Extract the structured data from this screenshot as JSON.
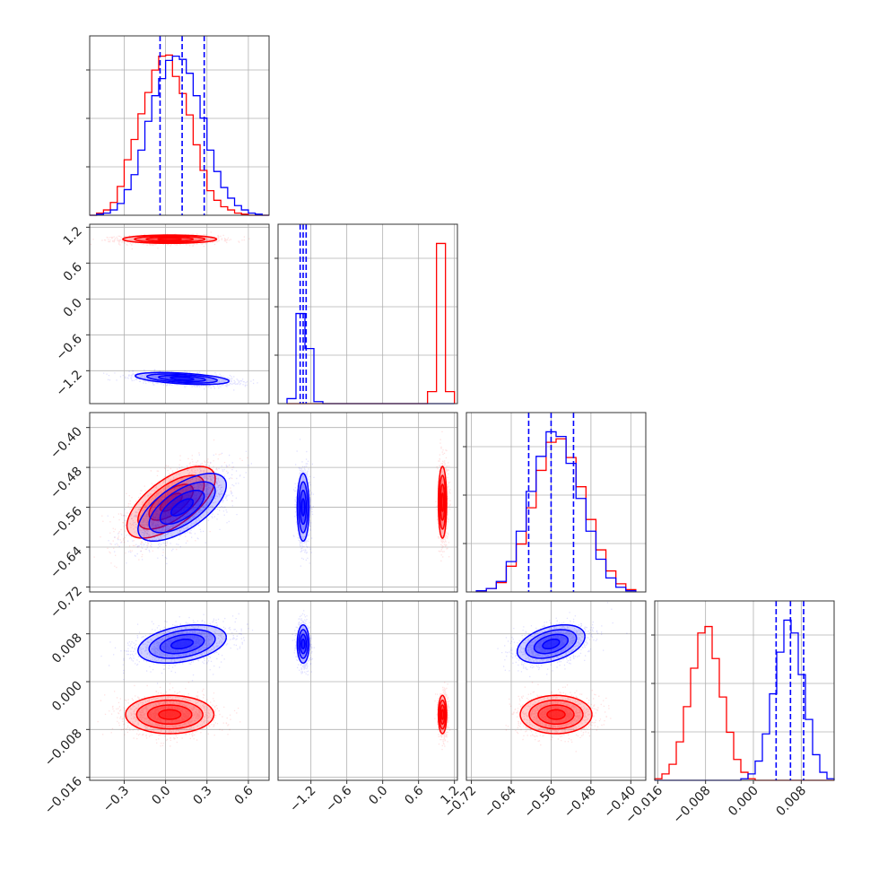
{
  "chart_data": {
    "type": "corner",
    "title": "",
    "grid": true,
    "legend": "none",
    "colors": {
      "series_a": "#ff0000",
      "series_b": "#0000ff",
      "quantile_lines": "#0000ff"
    },
    "series": [
      {
        "color": "#ff0000"
      },
      {
        "color": "#0000ff"
      }
    ],
    "parameters": [
      {
        "range": [
          -0.55,
          0.75
        ],
        "ticks": [
          -0.3,
          0.0,
          0.3,
          0.6
        ],
        "tick_labels": [
          "−0.3",
          "0.0",
          "0.3",
          "0.6"
        ],
        "quantiles": [
          -0.04,
          0.12,
          0.28
        ],
        "hist_bins": [
          -0.55,
          -0.5,
          -0.45,
          -0.4,
          -0.35,
          -0.3,
          -0.25,
          -0.2,
          -0.15,
          -0.1,
          -0.05,
          0.0,
          0.05,
          0.1,
          0.15,
          0.2,
          0.25,
          0.3,
          0.35,
          0.4,
          0.45,
          0.5,
          0.55,
          0.6,
          0.65,
          0.7,
          0.75
        ],
        "hist_red": [
          0,
          2,
          5,
          12,
          27,
          52,
          71,
          95,
          115,
          136,
          149,
          150,
          130,
          114,
          94,
          66,
          42,
          23,
          14,
          8,
          5,
          2,
          1,
          0,
          0,
          0
        ],
        "hist_blue": [
          0,
          1,
          2,
          5,
          11,
          24,
          38,
          61,
          88,
          112,
          128,
          145,
          149,
          146,
          133,
          112,
          91,
          61,
          41,
          26,
          16,
          9,
          5,
          2,
          1,
          0
        ]
      },
      {
        "range": [
          -1.75,
          1.25
        ],
        "ticks": [
          -1.2,
          -0.6,
          0.0,
          0.6,
          1.2
        ],
        "tick_labels": [
          "−1.2",
          "−0.6",
          "0.0",
          "0.6",
          "1.2"
        ],
        "quantiles": [
          -1.38,
          -1.33,
          -1.28
        ],
        "hist_bins": [
          -1.6,
          -1.45,
          -1.3,
          -1.15,
          -1.0,
          0.75,
          0.9,
          1.05,
          1.2
        ],
        "hist_red": [
          0,
          0,
          0,
          0,
          0,
          12,
          160,
          12
        ],
        "hist_blue": [
          5,
          90,
          55,
          2,
          0,
          0,
          0,
          0
        ]
      },
      {
        "range": [
          -0.73,
          -0.37
        ],
        "ticks": [
          -0.72,
          -0.64,
          -0.56,
          -0.48,
          -0.4
        ],
        "tick_labels": [
          "−0.72",
          "−0.64",
          "−0.56",
          "−0.48",
          "−0.40"
        ],
        "quantiles": [
          -0.605,
          -0.56,
          -0.515
        ],
        "hist_bins": [
          -0.71,
          -0.69,
          -0.67,
          -0.65,
          -0.63,
          -0.61,
          -0.59,
          -0.57,
          -0.55,
          -0.53,
          -0.51,
          -0.49,
          -0.47,
          -0.45,
          -0.43,
          -0.41,
          -0.39
        ],
        "hist_red": [
          1,
          3,
          8,
          22,
          41,
          72,
          104,
          128,
          131,
          115,
          90,
          62,
          36,
          18,
          7,
          2
        ],
        "hist_blue": [
          1,
          3,
          9,
          26,
          52,
          86,
          116,
          137,
          133,
          110,
          80,
          52,
          28,
          12,
          4,
          1
        ]
      },
      {
        "range": [
          -0.0165,
          0.0135
        ],
        "ticks": [
          -0.016,
          -0.008,
          0.0,
          0.008
        ],
        "tick_labels": [
          "−0.016",
          "−0.008",
          "0.000",
          "0.008"
        ],
        "quantiles": [
          0.0038,
          0.0062,
          0.0084
        ],
        "hist_bins": [
          -0.0165,
          -0.0153,
          -0.0141,
          -0.0129,
          -0.0117,
          -0.0105,
          -0.0093,
          -0.0081,
          -0.0069,
          -0.0057,
          -0.0045,
          -0.0033,
          -0.0021,
          -0.0009,
          0.0003,
          0.0015,
          0.0027,
          0.0039,
          0.0051,
          0.0063,
          0.0075,
          0.0087,
          0.0099,
          0.0111,
          0.0123,
          0.0135
        ],
        "hist_red": [
          1,
          4,
          10,
          24,
          46,
          70,
          92,
          96,
          76,
          52,
          30,
          13,
          5,
          1,
          0,
          0,
          0,
          0,
          0,
          0,
          0,
          0,
          0,
          0,
          0
        ],
        "hist_blue": [
          0,
          0,
          0,
          0,
          0,
          0,
          0,
          0,
          0,
          0,
          0,
          0,
          1,
          4,
          12,
          29,
          54,
          80,
          100,
          92,
          66,
          38,
          16,
          5,
          1
        ]
      }
    ],
    "panels_2d": [
      {
        "x": 0,
        "y": 1,
        "red": {
          "mean": [
            0.03,
            1.0
          ],
          "sd": [
            0.17,
            0.035
          ],
          "corr": 0.0
        },
        "blue": {
          "mean": [
            0.12,
            -1.33
          ],
          "sd": [
            0.17,
            0.05
          ],
          "corr": -0.45
        }
      },
      {
        "x": 0,
        "y": 2,
        "red": {
          "mean": [
            0.04,
            -0.55
          ],
          "sd": [
            0.16,
            0.036
          ],
          "corr": 0.65
        },
        "blue": {
          "mean": [
            0.12,
            -0.56
          ],
          "sd": [
            0.16,
            0.034
          ],
          "corr": 0.65
        }
      },
      {
        "x": 1,
        "y": 2,
        "red": {
          "mean": [
            1.0,
            -0.55
          ],
          "sd": [
            0.035,
            0.036
          ],
          "corr": 0.0
        },
        "blue": {
          "mean": [
            -1.33,
            -0.56
          ],
          "sd": [
            0.05,
            0.034
          ],
          "corr": 0.0
        }
      },
      {
        "x": 0,
        "y": 3,
        "red": {
          "mean": [
            0.03,
            -0.0055
          ],
          "sd": [
            0.16,
            0.0016
          ],
          "corr": 0.0
        },
        "blue": {
          "mean": [
            0.12,
            0.0063
          ],
          "sd": [
            0.16,
            0.0016
          ],
          "corr": 0.35
        }
      },
      {
        "x": 1,
        "y": 3,
        "red": {
          "mean": [
            1.0,
            -0.0055
          ],
          "sd": [
            0.035,
            0.0016
          ],
          "corr": 0.0
        },
        "blue": {
          "mean": [
            -1.33,
            0.0063
          ],
          "sd": [
            0.05,
            0.0016
          ],
          "corr": 0.0
        }
      },
      {
        "x": 2,
        "y": 3,
        "red": {
          "mean": [
            -0.55,
            -0.0055
          ],
          "sd": [
            0.036,
            0.0016
          ],
          "corr": 0.0
        },
        "blue": {
          "mean": [
            -0.56,
            0.0063
          ],
          "sd": [
            0.034,
            0.0016
          ],
          "corr": 0.4
        }
      }
    ]
  }
}
